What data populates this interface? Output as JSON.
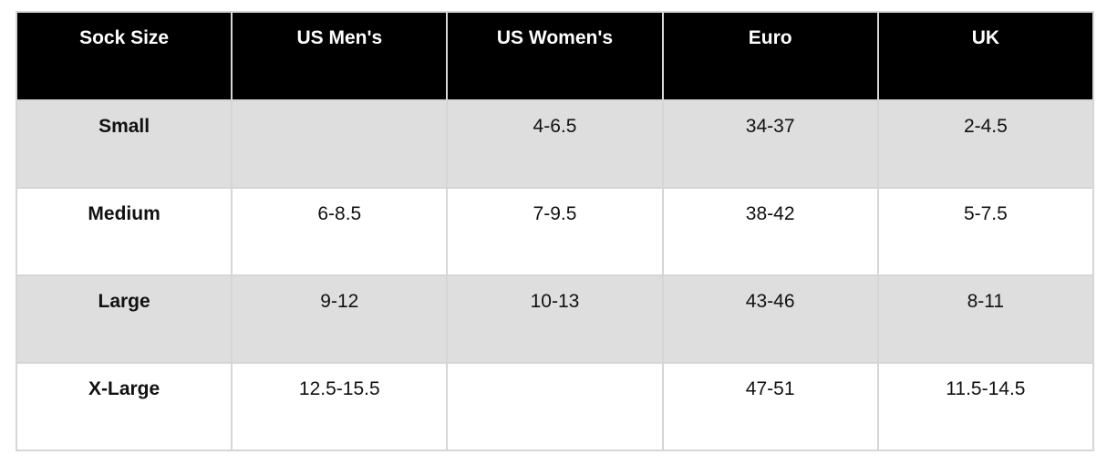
{
  "chart_data": {
    "type": "table",
    "columns": [
      "Sock Size",
      "US Men's",
      "US Women's",
      "Euro",
      "UK"
    ],
    "rows": [
      [
        "Small",
        "",
        "4-6.5",
        "34-37",
        "2-4.5"
      ],
      [
        "Medium",
        "6-8.5",
        "7-9.5",
        "38-42",
        "5-7.5"
      ],
      [
        "Large",
        "9-12",
        "10-13",
        "43-46",
        "8-11"
      ],
      [
        "X-Large",
        "12.5-15.5",
        "",
        "47-51",
        "11.5-14.5"
      ]
    ],
    "layout_hints": {
      "header_style": "black background, white bold text, top-aligned centered",
      "row_striping": "alternating gray then white starting with gray",
      "first_column_bold": true
    }
  },
  "colors": {
    "header_bg": "#000000",
    "header_text": "#ffffff",
    "stripe_row_bg": "#dedede",
    "plain_row_bg": "#ffffff",
    "body_text": "#111111",
    "border": "#d6d6d6",
    "page_bg": "#ffffff"
  }
}
